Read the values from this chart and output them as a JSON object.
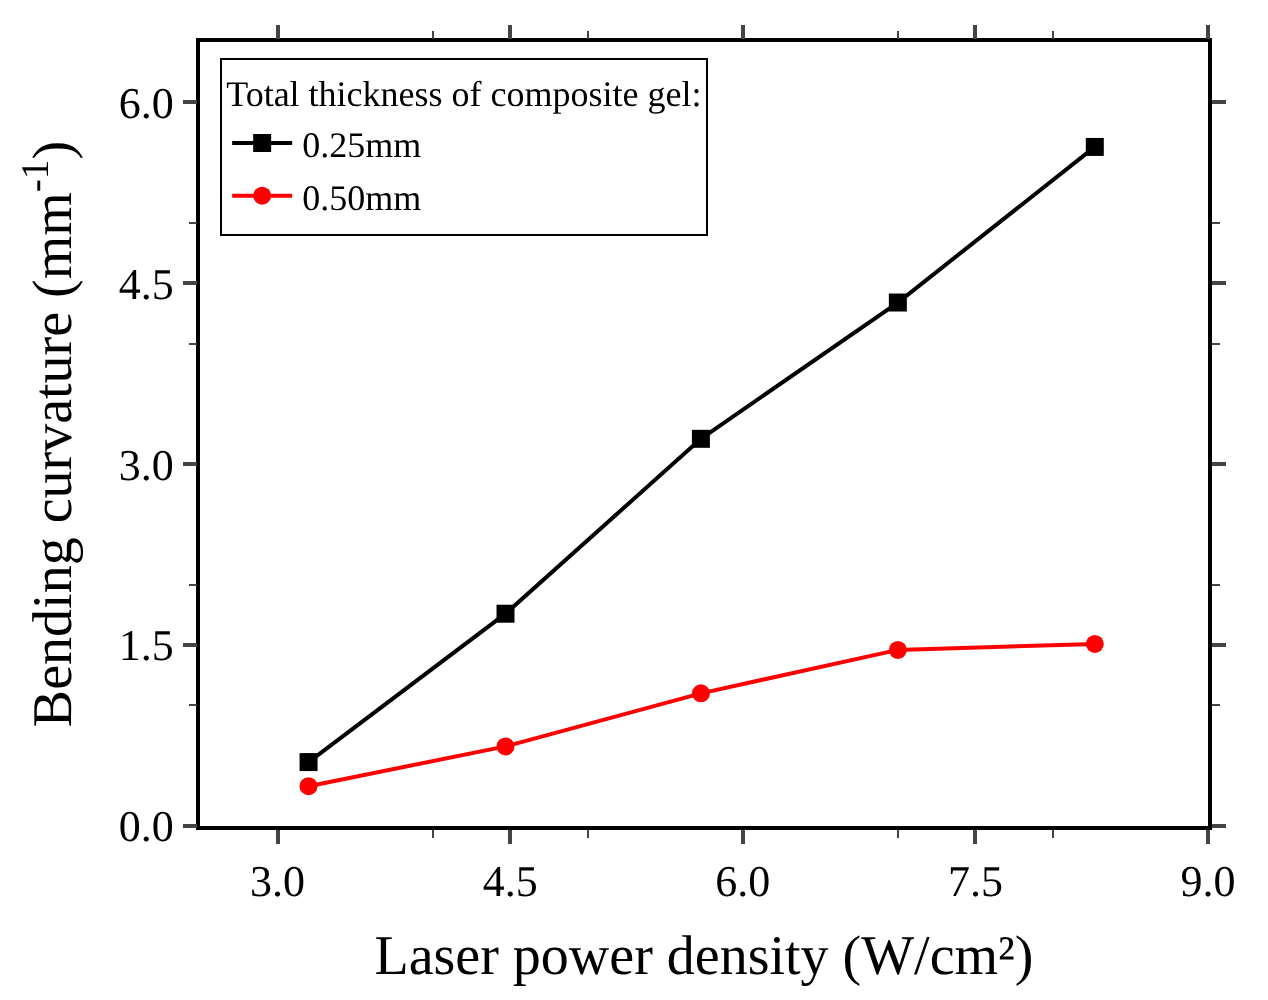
{
  "chart_data": {
    "type": "line",
    "xlabel": "Laser power density (W/cm²)",
    "ylabel": "Bending curvature (mm$^{-1}$)",
    "legend_title": "Total thickness of composite gel:",
    "x": [
      3.2,
      4.47,
      5.73,
      7.0,
      8.27
    ],
    "series": [
      {
        "name": "0.25mm",
        "color": "#000000",
        "marker": "square",
        "values": [
          0.53,
          1.76,
          3.21,
          4.34,
          5.63
        ]
      },
      {
        "name": "0.50mm",
        "color": "#ff0000",
        "marker": "circle",
        "values": [
          0.33,
          0.66,
          1.1,
          1.46,
          1.51
        ]
      }
    ],
    "xlim": [
      2.5,
      9.0
    ],
    "xticks": [
      {
        "value": 3,
        "label": "3.0"
      },
      4.5,
      {
        "value": 6,
        "label": "6.0"
      },
      7.5,
      {
        "value": 9,
        "label": "9.0"
      }
    ],
    "ylim": [
      0,
      6.5
    ],
    "yticks": [
      {
        "value": 0,
        "label": "0.0"
      },
      1.5,
      {
        "value": 3,
        "label": "3.0"
      },
      4.5,
      {
        "value": 6,
        "label": "6.0"
      }
    ],
    "legend": "top left",
    "line_style": "solid"
  }
}
